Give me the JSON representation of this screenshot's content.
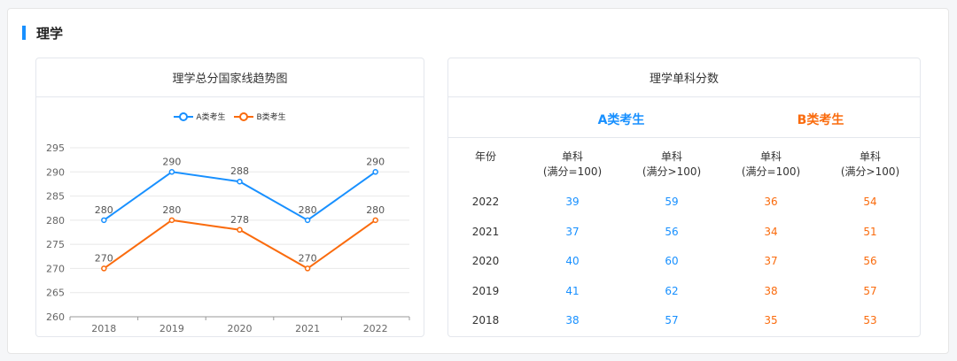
{
  "section": {
    "title": "理学"
  },
  "chart_card": {
    "title": "理学总分国家线趋势图"
  },
  "chart_data": {
    "type": "line",
    "title": "理学总分国家线趋势图",
    "categories": [
      "2018",
      "2019",
      "2020",
      "2021",
      "2022"
    ],
    "series": [
      {
        "name": "A类考生",
        "values": [
          280,
          290,
          288,
          280,
          290
        ],
        "color": "#1890ff"
      },
      {
        "name": "B类考生",
        "values": [
          270,
          280,
          278,
          270,
          280
        ],
        "color": "#fa6b0d"
      }
    ],
    "ylim": [
      260,
      295
    ],
    "yticks": [
      260,
      265,
      270,
      275,
      280,
      285,
      290,
      295
    ],
    "grid": true,
    "legend": "top-center"
  },
  "table_card": {
    "title": "理学单科分数",
    "group_a": "A类考生",
    "group_b": "B类考生",
    "headers": {
      "year": "年份",
      "col1_l1": "单科",
      "col1_l2": "(满分=100)",
      "col2_l1": "单科",
      "col2_l2": "(满分>100)",
      "col3_l1": "单科",
      "col3_l2": "(满分=100)",
      "col4_l1": "单科",
      "col4_l2": "(满分>100)"
    },
    "rows": [
      {
        "year": "2022",
        "a1": "39",
        "a2": "59",
        "b1": "36",
        "b2": "54"
      },
      {
        "year": "2021",
        "a1": "37",
        "a2": "56",
        "b1": "34",
        "b2": "51"
      },
      {
        "year": "2020",
        "a1": "40",
        "a2": "60",
        "b1": "37",
        "b2": "56"
      },
      {
        "year": "2019",
        "a1": "41",
        "a2": "62",
        "b1": "38",
        "b2": "57"
      },
      {
        "year": "2018",
        "a1": "38",
        "a2": "57",
        "b1": "35",
        "b2": "53"
      }
    ]
  }
}
